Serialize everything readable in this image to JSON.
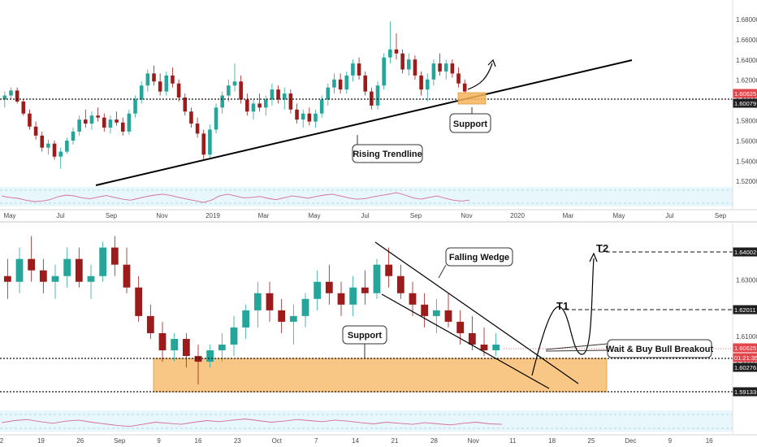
{
  "chart_data": [
    {
      "type": "candlestick",
      "panel": "top",
      "timeframe_hint": "daily",
      "x_axis_labels": [
        "May",
        "Jul",
        "Sep",
        "Nov",
        "2019",
        "Mar",
        "May",
        "Jul",
        "Sep",
        "Nov",
        "2020",
        "Mar",
        "May",
        "Jul",
        "Sep"
      ],
      "y_axis_labels": [
        "1.68000",
        "1.66000",
        "1.64000",
        "1.62000",
        "1.60000",
        "1.58000",
        "1.56000",
        "1.54000",
        "1.52000"
      ],
      "ylim": [
        1.516,
        1.688
      ],
      "price_tags": [
        {
          "value": "1.60625",
          "color": "#e0464b"
        },
        {
          "value": "1.60079",
          "color": "#1e1e1e"
        }
      ],
      "support_line": 1.60079,
      "candles": [
        [
          1.6,
          1.608,
          1.592,
          1.604
        ],
        [
          1.604,
          1.612,
          1.6,
          1.609
        ],
        [
          1.609,
          1.612,
          1.596,
          1.598
        ],
        [
          1.598,
          1.6,
          1.584,
          1.586
        ],
        [
          1.586,
          1.59,
          1.57,
          1.573
        ],
        [
          1.573,
          1.578,
          1.56,
          1.564
        ],
        [
          1.564,
          1.568,
          1.548,
          1.552
        ],
        [
          1.552,
          1.56,
          1.545,
          1.556
        ],
        [
          1.556,
          1.559,
          1.54,
          1.543
        ],
        [
          1.543,
          1.552,
          1.531,
          1.548
        ],
        [
          1.548,
          1.562,
          1.546,
          1.559
        ],
        [
          1.559,
          1.572,
          1.555,
          1.568
        ],
        [
          1.568,
          1.584,
          1.564,
          1.58
        ],
        [
          1.58,
          1.59,
          1.572,
          1.576
        ],
        [
          1.576,
          1.588,
          1.57,
          1.584
        ],
        [
          1.584,
          1.592,
          1.578,
          1.582
        ],
        [
          1.582,
          1.586,
          1.568,
          1.572
        ],
        [
          1.572,
          1.584,
          1.566,
          1.58
        ],
        [
          1.58,
          1.588,
          1.574,
          1.577
        ],
        [
          1.577,
          1.582,
          1.564,
          1.568
        ],
        [
          1.568,
          1.59,
          1.565,
          1.586
        ],
        [
          1.586,
          1.604,
          1.582,
          1.6
        ],
        [
          1.6,
          1.618,
          1.596,
          1.614
        ],
        [
          1.614,
          1.63,
          1.608,
          1.626
        ],
        [
          1.626,
          1.634,
          1.614,
          1.618
        ],
        [
          1.618,
          1.626,
          1.604,
          1.608
        ],
        [
          1.608,
          1.628,
          1.604,
          1.624
        ],
        [
          1.624,
          1.632,
          1.612,
          1.616
        ],
        [
          1.616,
          1.62,
          1.598,
          1.602
        ],
        [
          1.602,
          1.606,
          1.584,
          1.588
        ],
        [
          1.588,
          1.592,
          1.572,
          1.576
        ],
        [
          1.576,
          1.582,
          1.562,
          1.566
        ],
        [
          1.566,
          1.57,
          1.54,
          1.545
        ],
        [
          1.545,
          1.575,
          1.542,
          1.57
        ],
        [
          1.57,
          1.596,
          1.566,
          1.592
        ],
        [
          1.592,
          1.608,
          1.586,
          1.604
        ],
        [
          1.604,
          1.62,
          1.598,
          1.614
        ],
        [
          1.614,
          1.636,
          1.608,
          1.618
        ],
        [
          1.618,
          1.624,
          1.596,
          1.6
        ],
        [
          1.6,
          1.606,
          1.584,
          1.588
        ],
        [
          1.588,
          1.6,
          1.58,
          1.596
        ],
        [
          1.596,
          1.606,
          1.588,
          1.592
        ],
        [
          1.592,
          1.604,
          1.584,
          1.6
        ],
        [
          1.6,
          1.616,
          1.594,
          1.61
        ],
        [
          1.61,
          1.614,
          1.596,
          1.6
        ],
        [
          1.6,
          1.612,
          1.59,
          1.606
        ],
        [
          1.606,
          1.61,
          1.586,
          1.59
        ],
        [
          1.59,
          1.596,
          1.576,
          1.58
        ],
        [
          1.58,
          1.59,
          1.572,
          1.586
        ],
        [
          1.586,
          1.592,
          1.574,
          1.578
        ],
        [
          1.578,
          1.59,
          1.572,
          1.586
        ],
        [
          1.586,
          1.604,
          1.582,
          1.6
        ],
        [
          1.6,
          1.616,
          1.594,
          1.612
        ],
        [
          1.612,
          1.626,
          1.606,
          1.62
        ],
        [
          1.62,
          1.626,
          1.606,
          1.61
        ],
        [
          1.61,
          1.628,
          1.606,
          1.624
        ],
        [
          1.624,
          1.64,
          1.618,
          1.636
        ],
        [
          1.636,
          1.642,
          1.62,
          1.624
        ],
        [
          1.624,
          1.628,
          1.604,
          1.608
        ],
        [
          1.608,
          1.612,
          1.59,
          1.594
        ],
        [
          1.594,
          1.618,
          1.59,
          1.614
        ],
        [
          1.614,
          1.646,
          1.61,
          1.642
        ],
        [
          1.642,
          1.678,
          1.636,
          1.65
        ],
        [
          1.65,
          1.666,
          1.64,
          1.646
        ],
        [
          1.646,
          1.65,
          1.626,
          1.63
        ],
        [
          1.63,
          1.646,
          1.624,
          1.64
        ],
        [
          1.64,
          1.644,
          1.62,
          1.624
        ],
        [
          1.624,
          1.628,
          1.604,
          1.61
        ],
        [
          1.61,
          1.626,
          1.598,
          1.62
        ],
        [
          1.62,
          1.64,
          1.614,
          1.636
        ],
        [
          1.636,
          1.646,
          1.624,
          1.628
        ],
        [
          1.628,
          1.64,
          1.62,
          1.636
        ],
        [
          1.636,
          1.64,
          1.622,
          1.626
        ],
        [
          1.626,
          1.632,
          1.612,
          1.616
        ],
        [
          1.616,
          1.62,
          1.606,
          1.608
        ]
      ],
      "rsi": [
        58,
        52,
        48,
        40,
        34,
        36,
        42,
        55,
        62,
        58,
        50,
        46,
        54,
        60,
        52,
        44,
        40,
        48,
        56,
        62,
        66,
        60,
        52,
        44,
        38,
        30,
        40,
        58,
        66,
        58,
        50,
        52,
        56,
        48,
        42,
        50,
        58,
        54,
        48,
        56,
        62,
        66,
        58,
        50,
        44,
        46,
        54,
        60,
        66,
        72,
        62,
        50,
        44,
        52,
        58,
        48,
        40,
        36,
        40
      ]
    },
    {
      "type": "candlestick",
      "panel": "bottom",
      "timeframe_hint": "4h",
      "x_axis_labels": [
        "2",
        "19",
        "26",
        "Sep",
        "9",
        "16",
        "23",
        "Oct",
        "7",
        "14",
        "21",
        "28",
        "Nov",
        "11",
        "18",
        "25",
        "Dec",
        "9",
        "16"
      ],
      "y_axis_labels": [
        "1.64000",
        "1.63000",
        "1.62000",
        "1.61000",
        "1.60000",
        "1.59000"
      ],
      "ylim": [
        1.5855,
        1.647
      ],
      "price_tags": [
        {
          "value": "1.64002",
          "color": "#1e1e1e"
        },
        {
          "value": "1.62011",
          "color": "#1e1e1e"
        },
        {
          "value": "1.60625",
          "color": "#e0464b"
        },
        {
          "value": "01:21:35",
          "color": "#e0464b"
        },
        {
          "value": "1.60276",
          "color": "#1e1e1e"
        },
        {
          "value": "1.59133",
          "color": "#1e1e1e"
        }
      ],
      "support_zone": [
        1.5913,
        1.6028
      ],
      "target_levels": [
        {
          "label": "T1",
          "value": 1.62011
        },
        {
          "label": "T2",
          "value": 1.64002
        }
      ],
      "candles": [
        [
          1.63,
          1.636,
          1.622,
          1.628
        ],
        [
          1.628,
          1.64,
          1.624,
          1.636
        ],
        [
          1.636,
          1.644,
          1.628,
          1.632
        ],
        [
          1.632,
          1.636,
          1.624,
          1.628
        ],
        [
          1.628,
          1.634,
          1.622,
          1.63
        ],
        [
          1.63,
          1.64,
          1.626,
          1.636
        ],
        [
          1.636,
          1.64,
          1.626,
          1.628
        ],
        [
          1.628,
          1.634,
          1.622,
          1.63
        ],
        [
          1.63,
          1.642,
          1.628,
          1.64
        ],
        [
          1.64,
          1.644,
          1.63,
          1.634
        ],
        [
          1.634,
          1.64,
          1.624,
          1.626
        ],
        [
          1.626,
          1.63,
          1.614,
          1.616
        ],
        [
          1.616,
          1.62,
          1.608,
          1.61
        ],
        [
          1.61,
          1.614,
          1.6,
          1.604
        ],
        [
          1.604,
          1.61,
          1.6,
          1.608
        ],
        [
          1.608,
          1.61,
          1.598,
          1.602
        ],
        [
          1.602,
          1.606,
          1.592,
          1.6
        ],
        [
          1.6,
          1.606,
          1.598,
          1.604
        ],
        [
          1.604,
          1.61,
          1.6,
          1.606
        ],
        [
          1.606,
          1.616,
          1.602,
          1.612
        ],
        [
          1.612,
          1.62,
          1.608,
          1.618
        ],
        [
          1.618,
          1.628,
          1.612,
          1.624
        ],
        [
          1.624,
          1.628,
          1.614,
          1.618
        ],
        [
          1.618,
          1.622,
          1.61,
          1.614
        ],
        [
          1.614,
          1.62,
          1.606,
          1.616
        ],
        [
          1.616,
          1.624,
          1.612,
          1.622
        ],
        [
          1.622,
          1.632,
          1.618,
          1.628
        ],
        [
          1.628,
          1.634,
          1.62,
          1.624
        ],
        [
          1.624,
          1.628,
          1.616,
          1.62
        ],
        [
          1.62,
          1.63,
          1.616,
          1.626
        ],
        [
          1.626,
          1.632,
          1.62,
          1.624
        ],
        [
          1.624,
          1.636,
          1.622,
          1.634
        ],
        [
          1.634,
          1.64,
          1.626,
          1.63
        ],
        [
          1.63,
          1.634,
          1.622,
          1.624
        ],
        [
          1.624,
          1.628,
          1.616,
          1.62
        ],
        [
          1.62,
          1.624,
          1.612,
          1.616
        ],
        [
          1.616,
          1.622,
          1.61,
          1.618
        ],
        [
          1.618,
          1.624,
          1.612,
          1.614
        ],
        [
          1.614,
          1.618,
          1.606,
          1.61
        ],
        [
          1.61,
          1.616,
          1.604,
          1.606
        ],
        [
          1.606,
          1.612,
          1.602,
          1.604
        ],
        [
          1.604,
          1.61,
          1.602,
          1.606
        ]
      ],
      "rsi": [
        50,
        58,
        62,
        54,
        48,
        56,
        60,
        52,
        46,
        40,
        36,
        44,
        52,
        48,
        44,
        52,
        58,
        54,
        60,
        64,
        58,
        52,
        56,
        62,
        58,
        54,
        60,
        56,
        50,
        46,
        52,
        48,
        44,
        50,
        46,
        42,
        48,
        52,
        46,
        44
      ]
    }
  ],
  "annotations": {
    "top_rising_trendline": "Rising Trendline",
    "top_support": "Support",
    "bottom_falling_wedge": "Falling Wedge",
    "bottom_support": "Support",
    "bottom_buy_note": "Wait & Buy Bull Breakout",
    "t1": "T1",
    "t2": "T2"
  },
  "colors": {
    "up": "#26a69a",
    "down": "#9c1c1c",
    "support_zone": "#f6b45c",
    "rsi_fill": "#e8f7fb",
    "rsi_line": "#d46aa0",
    "axis_text": "#4a4a4a"
  }
}
